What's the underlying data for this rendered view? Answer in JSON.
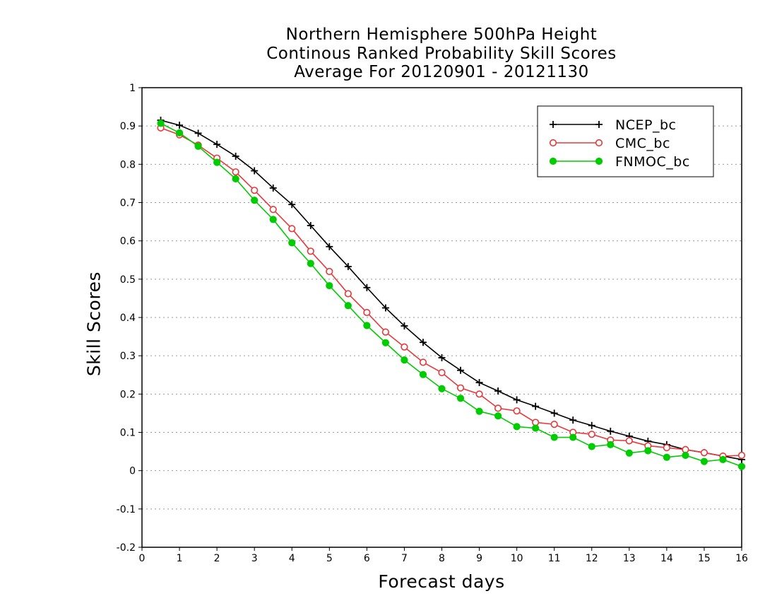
{
  "chart_data": {
    "type": "line",
    "title_lines": [
      "Northern Hemisphere 500hPa Height",
      "Continous Ranked Probability Skill Scores",
      "Average For 20120901 - 20121130"
    ],
    "xlabel": "Forecast days",
    "ylabel": "Skill Scores",
    "xlim": [
      0,
      16
    ],
    "ylim": [
      -0.2,
      1
    ],
    "xticks": [
      0,
      1,
      2,
      3,
      4,
      5,
      6,
      7,
      8,
      9,
      10,
      11,
      12,
      13,
      14,
      15,
      16
    ],
    "yticks": [
      -0.2,
      -0.1,
      0,
      0.1,
      0.2,
      0.3,
      0.4,
      0.5,
      0.6,
      0.7,
      0.8,
      0.9,
      1
    ],
    "ytick_labels": [
      "-0.2",
      "-0.1",
      "0",
      "0.1",
      "0.2",
      "0.3",
      "0.4",
      "0.5",
      "0.6",
      "0.7",
      "0.8",
      "0.9",
      "1"
    ],
    "grid": "horizontal dotted",
    "legend_position": "top-right",
    "x": [
      0.5,
      1,
      1.5,
      2,
      2.5,
      3,
      3.5,
      4,
      4.5,
      5,
      5.5,
      6,
      6.5,
      7,
      7.5,
      8,
      8.5,
      9,
      9.5,
      10,
      10.5,
      11,
      11.5,
      12,
      12.5,
      13,
      13.5,
      14,
      14.5,
      15,
      15.5,
      16
    ],
    "series": [
      {
        "name": "NCEP_bc",
        "color": "#000000",
        "marker": "plus",
        "values": [
          0.915,
          0.902,
          0.881,
          0.852,
          0.821,
          0.783,
          0.738,
          0.695,
          0.64,
          0.585,
          0.533,
          0.478,
          0.425,
          0.378,
          0.335,
          0.295,
          0.262,
          0.23,
          0.208,
          0.185,
          0.168,
          0.15,
          0.132,
          0.118,
          0.103,
          0.09,
          0.077,
          0.068,
          0.055,
          0.047,
          0.038,
          0.029
        ]
      },
      {
        "name": "CMC_bc",
        "color": "#e8383b",
        "marker": "open-circle",
        "values": [
          0.895,
          0.877,
          0.85,
          0.816,
          0.78,
          0.732,
          0.682,
          0.632,
          0.573,
          0.52,
          0.462,
          0.413,
          0.362,
          0.323,
          0.283,
          0.256,
          0.216,
          0.2,
          0.163,
          0.156,
          0.126,
          0.121,
          0.1,
          0.095,
          0.08,
          0.078,
          0.065,
          0.06,
          0.055,
          0.047,
          0.038,
          0.04
        ]
      },
      {
        "name": "FNMOC_bc",
        "color": "#00cc00",
        "marker": "filled-circle",
        "values": [
          0.907,
          0.882,
          0.847,
          0.805,
          0.762,
          0.706,
          0.656,
          0.595,
          0.541,
          0.483,
          0.431,
          0.379,
          0.334,
          0.289,
          0.251,
          0.214,
          0.189,
          0.155,
          0.143,
          0.115,
          0.111,
          0.087,
          0.087,
          0.063,
          0.068,
          0.046,
          0.052,
          0.035,
          0.04,
          0.024,
          0.029,
          0.011
        ]
      }
    ]
  }
}
